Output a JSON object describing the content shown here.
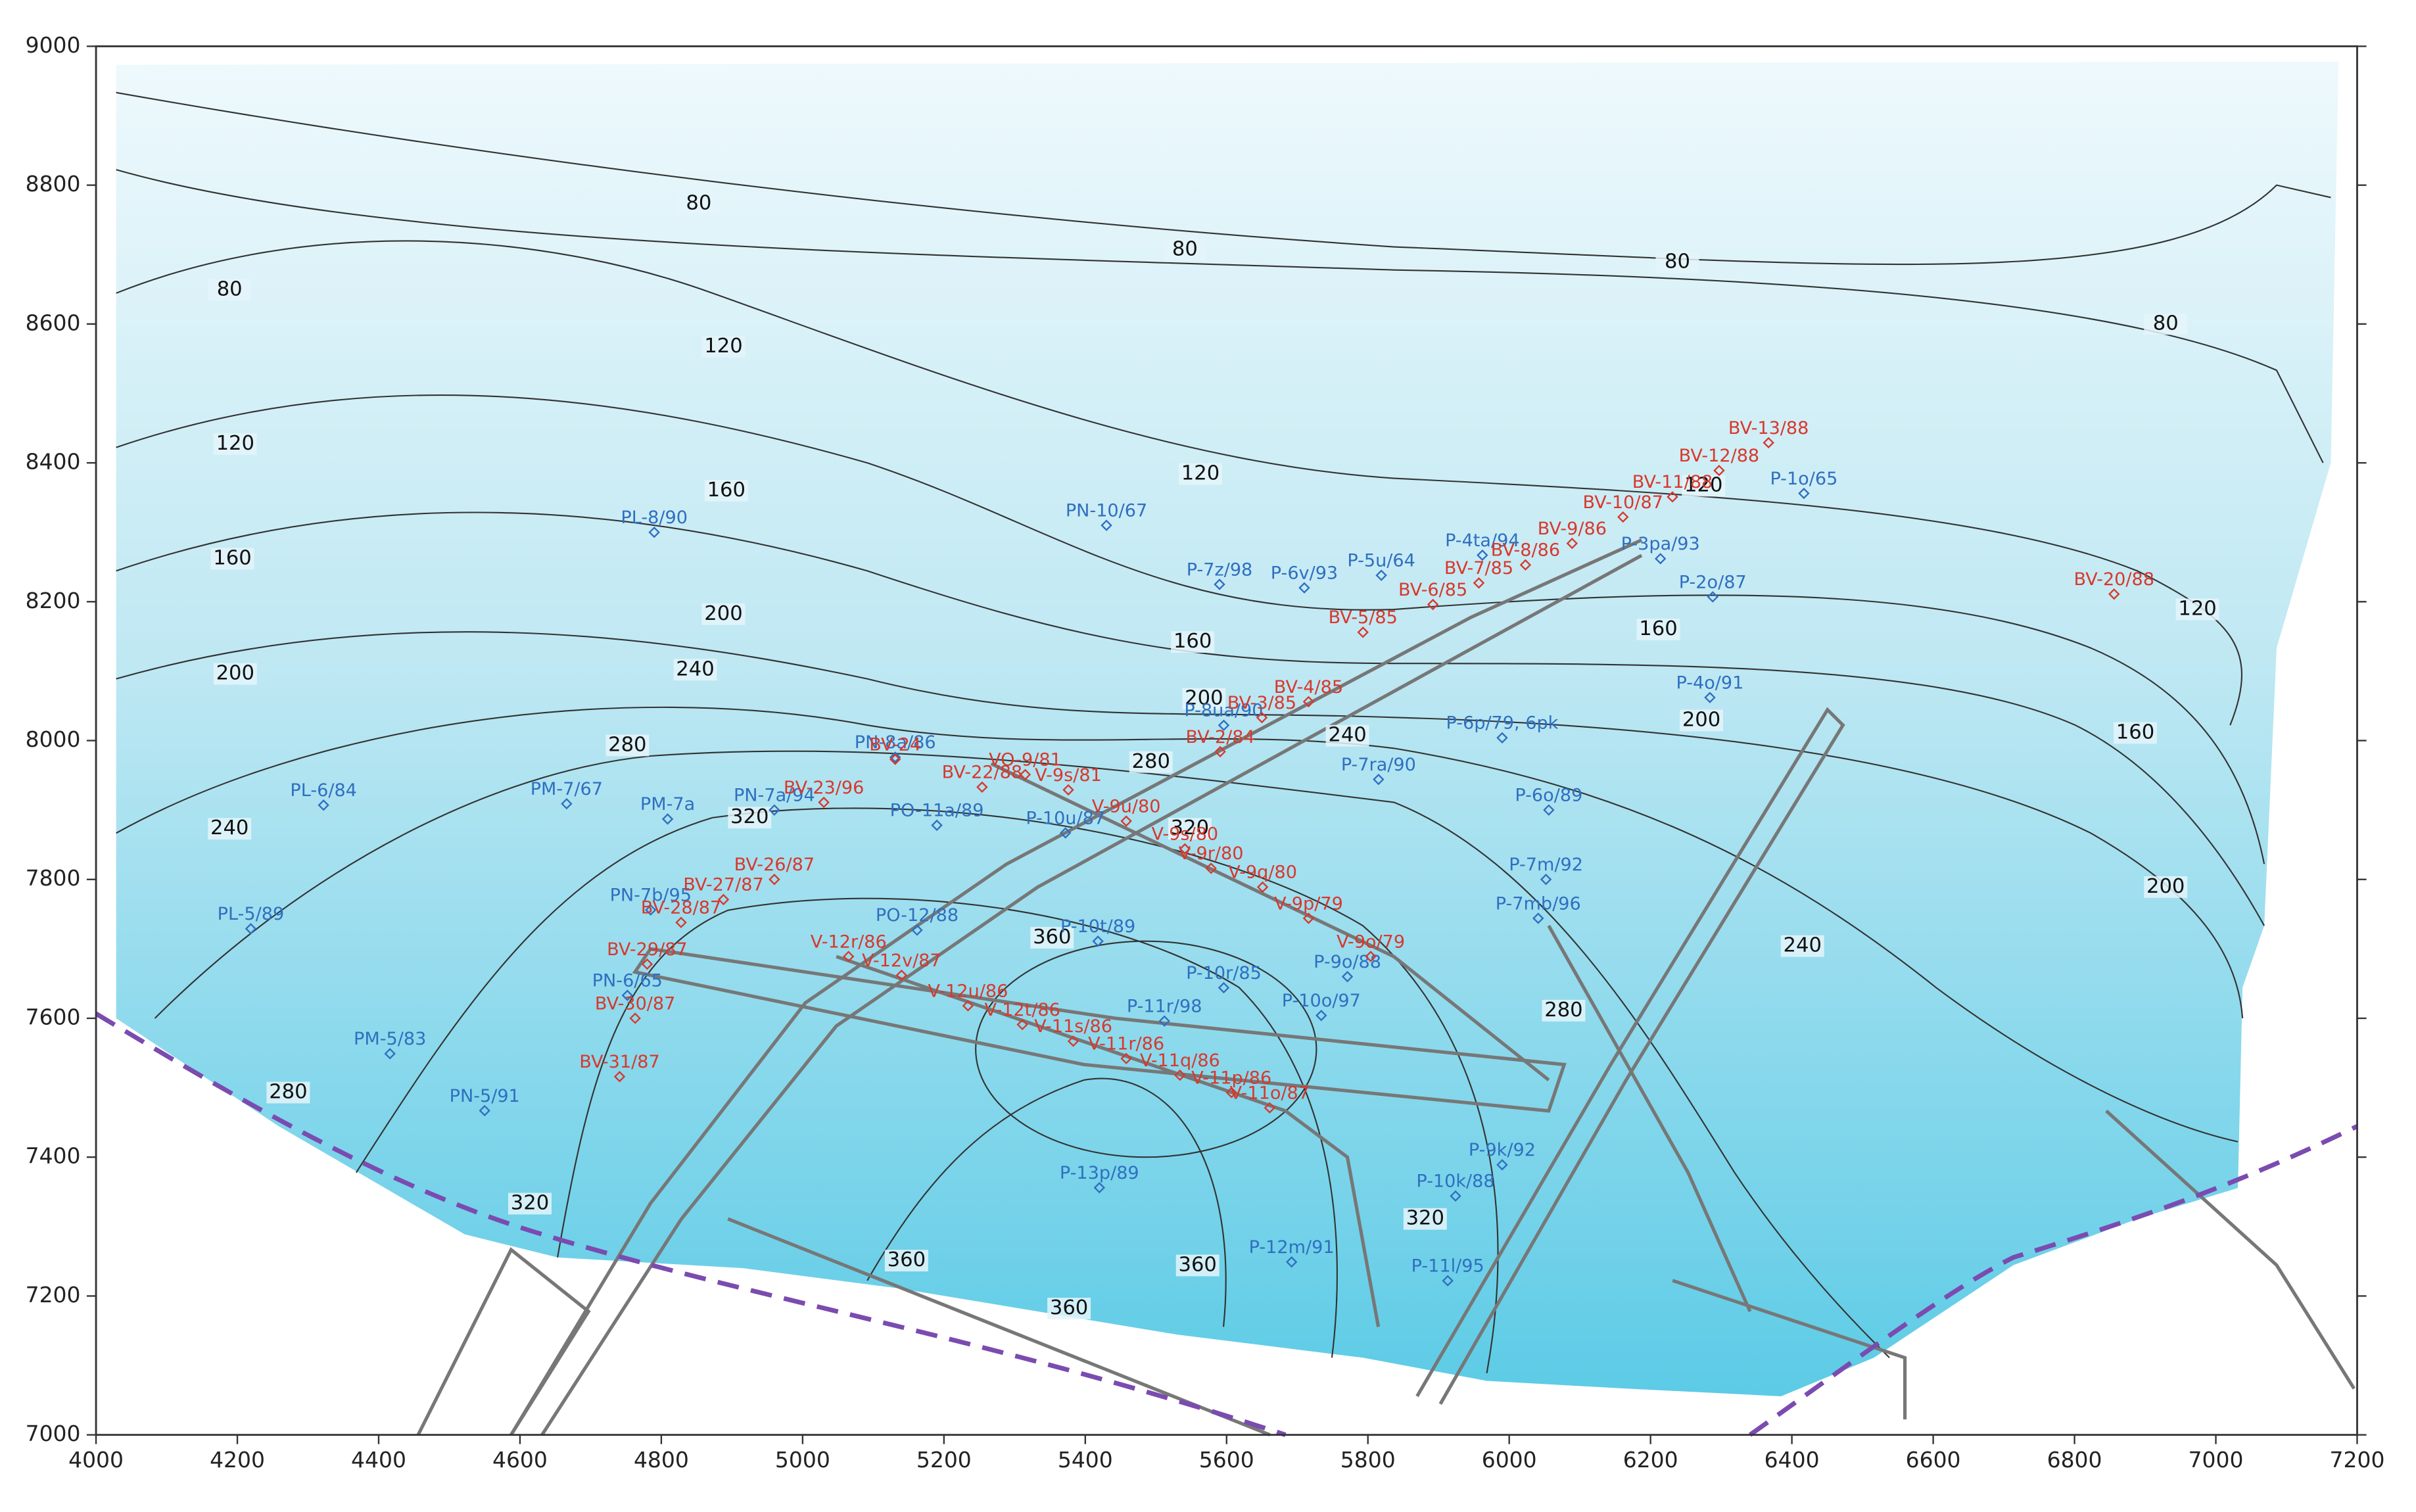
{
  "map": {
    "xlim": [
      4000,
      7200
    ],
    "ylim": [
      7000,
      9000
    ],
    "xticks": [
      4000,
      4200,
      4400,
      4600,
      4800,
      5000,
      5200,
      5400,
      5600,
      5800,
      6000,
      6200,
      6400,
      6600,
      6800,
      7000,
      7200
    ],
    "yticks": [
      7000,
      7200,
      7400,
      7600,
      7800,
      8000,
      8200,
      8400,
      8600,
      8800,
      9000
    ],
    "contour_labels": [
      {
        "value": 80,
        "x": 4853,
        "y": 8773
      },
      {
        "value": 80,
        "x": 5541,
        "y": 8707
      },
      {
        "value": 80,
        "x": 6238,
        "y": 8689
      },
      {
        "value": 80,
        "x": 6929,
        "y": 8600
      },
      {
        "value": 80,
        "x": 4189,
        "y": 8649
      },
      {
        "value": 120,
        "x": 4888,
        "y": 8567
      },
      {
        "value": 120,
        "x": 5563,
        "y": 8384
      },
      {
        "value": 120,
        "x": 6275,
        "y": 8367
      },
      {
        "value": 120,
        "x": 6974,
        "y": 8189
      },
      {
        "value": 120,
        "x": 4197,
        "y": 8427
      },
      {
        "value": 160,
        "x": 4892,
        "y": 8360
      },
      {
        "value": 160,
        "x": 4193,
        "y": 8262
      },
      {
        "value": 160,
        "x": 5552,
        "y": 8142
      },
      {
        "value": 160,
        "x": 6211,
        "y": 8160
      },
      {
        "value": 160,
        "x": 6886,
        "y": 8011
      },
      {
        "value": 200,
        "x": 4888,
        "y": 8182
      },
      {
        "value": 200,
        "x": 4197,
        "y": 8096
      },
      {
        "value": 200,
        "x": 5568,
        "y": 8060
      },
      {
        "value": 200,
        "x": 6272,
        "y": 8029
      },
      {
        "value": 200,
        "x": 6929,
        "y": 7789
      },
      {
        "value": 240,
        "x": 4848,
        "y": 8102
      },
      {
        "value": 240,
        "x": 4189,
        "y": 7873
      },
      {
        "value": 240,
        "x": 5771,
        "y": 8007
      },
      {
        "value": 240,
        "x": 6415,
        "y": 7704
      },
      {
        "value": 280,
        "x": 4752,
        "y": 7993
      },
      {
        "value": 280,
        "x": 5493,
        "y": 7969
      },
      {
        "value": 280,
        "x": 6077,
        "y": 7611
      },
      {
        "value": 280,
        "x": 4272,
        "y": 7493
      },
      {
        "value": 320,
        "x": 4925,
        "y": 7889
      },
      {
        "value": 320,
        "x": 5548,
        "y": 7873
      },
      {
        "value": 320,
        "x": 5881,
        "y": 7311
      },
      {
        "value": 320,
        "x": 4614,
        "y": 7333
      },
      {
        "value": 360,
        "x": 5353,
        "y": 7716
      },
      {
        "value": 360,
        "x": 5147,
        "y": 7251
      },
      {
        "value": 360,
        "x": 5559,
        "y": 7244
      },
      {
        "value": 360,
        "x": 5377,
        "y": 7182
      }
    ],
    "well_groups": [
      {
        "color": "#2f6fc0",
        "wells": [
          {
            "name": "PL-8/90",
            "x": 4790,
            "y": 8300
          },
          {
            "name": "PN-10/67",
            "x": 5430,
            "y": 8310
          },
          {
            "name": "P-7z/98",
            "x": 5590,
            "y": 8225
          },
          {
            "name": "P-6v/93",
            "x": 5710,
            "y": 8220
          },
          {
            "name": "P-5u/64",
            "x": 5819,
            "y": 8238
          },
          {
            "name": "P-4ta/94",
            "x": 5962,
            "y": 8267
          },
          {
            "name": "P-3pa/93",
            "x": 6214,
            "y": 8262
          },
          {
            "name": "P-1o/65",
            "x": 6417,
            "y": 8356
          },
          {
            "name": "P-2o/87",
            "x": 6288,
            "y": 8207
          },
          {
            "name": "P-4o/91",
            "x": 6284,
            "y": 8062
          },
          {
            "name": "P-6p/79, 6pk",
            "x": 5990,
            "y": 8004
          },
          {
            "name": "P-8ua/90",
            "x": 5596,
            "y": 8022
          },
          {
            "name": "P-7ra/90",
            "x": 5815,
            "y": 7944
          },
          {
            "name": "P-6o/89",
            "x": 6056,
            "y": 7900
          },
          {
            "name": "P-7m/92",
            "x": 6052,
            "y": 7800
          },
          {
            "name": "P-7mb/96",
            "x": 6041,
            "y": 7744
          },
          {
            "name": "PL-6/84",
            "x": 4322,
            "y": 7907
          },
          {
            "name": "PM-7/67",
            "x": 4666,
            "y": 7909
          },
          {
            "name": "PM-7a",
            "x": 4809,
            "y": 7887
          },
          {
            "name": "PN-7a/94",
            "x": 4960,
            "y": 7900
          },
          {
            "name": "PN-8a/86",
            "x": 5131,
            "y": 7976
          },
          {
            "name": "PO-11a/89",
            "x": 5190,
            "y": 7878
          },
          {
            "name": "P-10u/87",
            "x": 5372,
            "y": 7867
          },
          {
            "name": "PL-5/89",
            "x": 4219,
            "y": 7729
          },
          {
            "name": "PN-7b/95",
            "x": 4785,
            "y": 7756
          },
          {
            "name": "PO-12/88",
            "x": 5162,
            "y": 7727
          },
          {
            "name": "P-10t/89",
            "x": 5418,
            "y": 7711
          },
          {
            "name": "P-10r/85",
            "x": 5596,
            "y": 7644
          },
          {
            "name": "P-9o/88",
            "x": 5771,
            "y": 7660
          },
          {
            "name": "P-10o/97",
            "x": 5734,
            "y": 7604
          },
          {
            "name": "P-11r/98",
            "x": 5512,
            "y": 7596
          },
          {
            "name": "PN-6/65",
            "x": 4752,
            "y": 7633
          },
          {
            "name": "PM-5/83",
            "x": 4416,
            "y": 7549
          },
          {
            "name": "PN-5/91",
            "x": 4550,
            "y": 7467
          },
          {
            "name": "P-13p/89",
            "x": 5420,
            "y": 7356
          },
          {
            "name": "P-10k/88",
            "x": 5924,
            "y": 7344
          },
          {
            "name": "P-9k/92",
            "x": 5990,
            "y": 7389
          },
          {
            "name": "P-12m/91",
            "x": 5692,
            "y": 7249
          },
          {
            "name": "P-11l/95",
            "x": 5913,
            "y": 7222
          }
        ]
      },
      {
        "color": "#d8382c",
        "wells": [
          {
            "name": "BV-13/88",
            "x": 6367,
            "y": 8429
          },
          {
            "name": "BV-12/88",
            "x": 6297,
            "y": 8389
          },
          {
            "name": "BV-11/88",
            "x": 6231,
            "y": 8351
          },
          {
            "name": "BV-10/87",
            "x": 6161,
            "y": 8322
          },
          {
            "name": "BV-9/86",
            "x": 6089,
            "y": 8284
          },
          {
            "name": "BV-8/86",
            "x": 6023,
            "y": 8253
          },
          {
            "name": "BV-7/85",
            "x": 5957,
            "y": 8227
          },
          {
            "name": "BV-6/85",
            "x": 5892,
            "y": 8196
          },
          {
            "name": "BV-5/85",
            "x": 5793,
            "y": 8156
          },
          {
            "name": "BV-4/85",
            "x": 5716,
            "y": 8056
          },
          {
            "name": "BV-3/85",
            "x": 5650,
            "y": 8033
          },
          {
            "name": "BV-2/84",
            "x": 5591,
            "y": 7984
          },
          {
            "name": "BV-20/88",
            "x": 6856,
            "y": 8211
          },
          {
            "name": "BV-24",
            "x": 5131,
            "y": 7973
          },
          {
            "name": "VO-9/81",
            "x": 5315,
            "y": 7951
          },
          {
            "name": "V-9s/81",
            "x": 5376,
            "y": 7929
          },
          {
            "name": "BV-22/88",
            "x": 5254,
            "y": 7933
          },
          {
            "name": "BV-23/96",
            "x": 5030,
            "y": 7911
          },
          {
            "name": "V-9u/80",
            "x": 5458,
            "y": 7884
          },
          {
            "name": "V-9s/80",
            "x": 5541,
            "y": 7844
          },
          {
            "name": "V-9r/80",
            "x": 5578,
            "y": 7816
          },
          {
            "name": "V-9q/80",
            "x": 5651,
            "y": 7789
          },
          {
            "name": "V-9p/79",
            "x": 5716,
            "y": 7744
          },
          {
            "name": "V-9o/79",
            "x": 5804,
            "y": 7689
          },
          {
            "name": "BV-26/87",
            "x": 4960,
            "y": 7800
          },
          {
            "name": "BV-27/87",
            "x": 4888,
            "y": 7771
          },
          {
            "name": "BV-28/87",
            "x": 4828,
            "y": 7738
          },
          {
            "name": "BV-29/87",
            "x": 4780,
            "y": 7678
          },
          {
            "name": "BV-30/87",
            "x": 4763,
            "y": 7600
          },
          {
            "name": "BV-31/87",
            "x": 4741,
            "y": 7516
          },
          {
            "name": "V-12r/86",
            "x": 5065,
            "y": 7689
          },
          {
            "name": "V-12v/87",
            "x": 5140,
            "y": 7662
          },
          {
            "name": "V-12u/86",
            "x": 5234,
            "y": 7618
          },
          {
            "name": "V-12t/86",
            "x": 5311,
            "y": 7591
          },
          {
            "name": "V-11s/86",
            "x": 5383,
            "y": 7567
          },
          {
            "name": "V-11r/86",
            "x": 5458,
            "y": 7542
          },
          {
            "name": "V-11q/86",
            "x": 5534,
            "y": 7518
          },
          {
            "name": "V-11p/86",
            "x": 5607,
            "y": 7493
          },
          {
            "name": "V-11o/87",
            "x": 5661,
            "y": 7471
          }
        ]
      }
    ]
  }
}
